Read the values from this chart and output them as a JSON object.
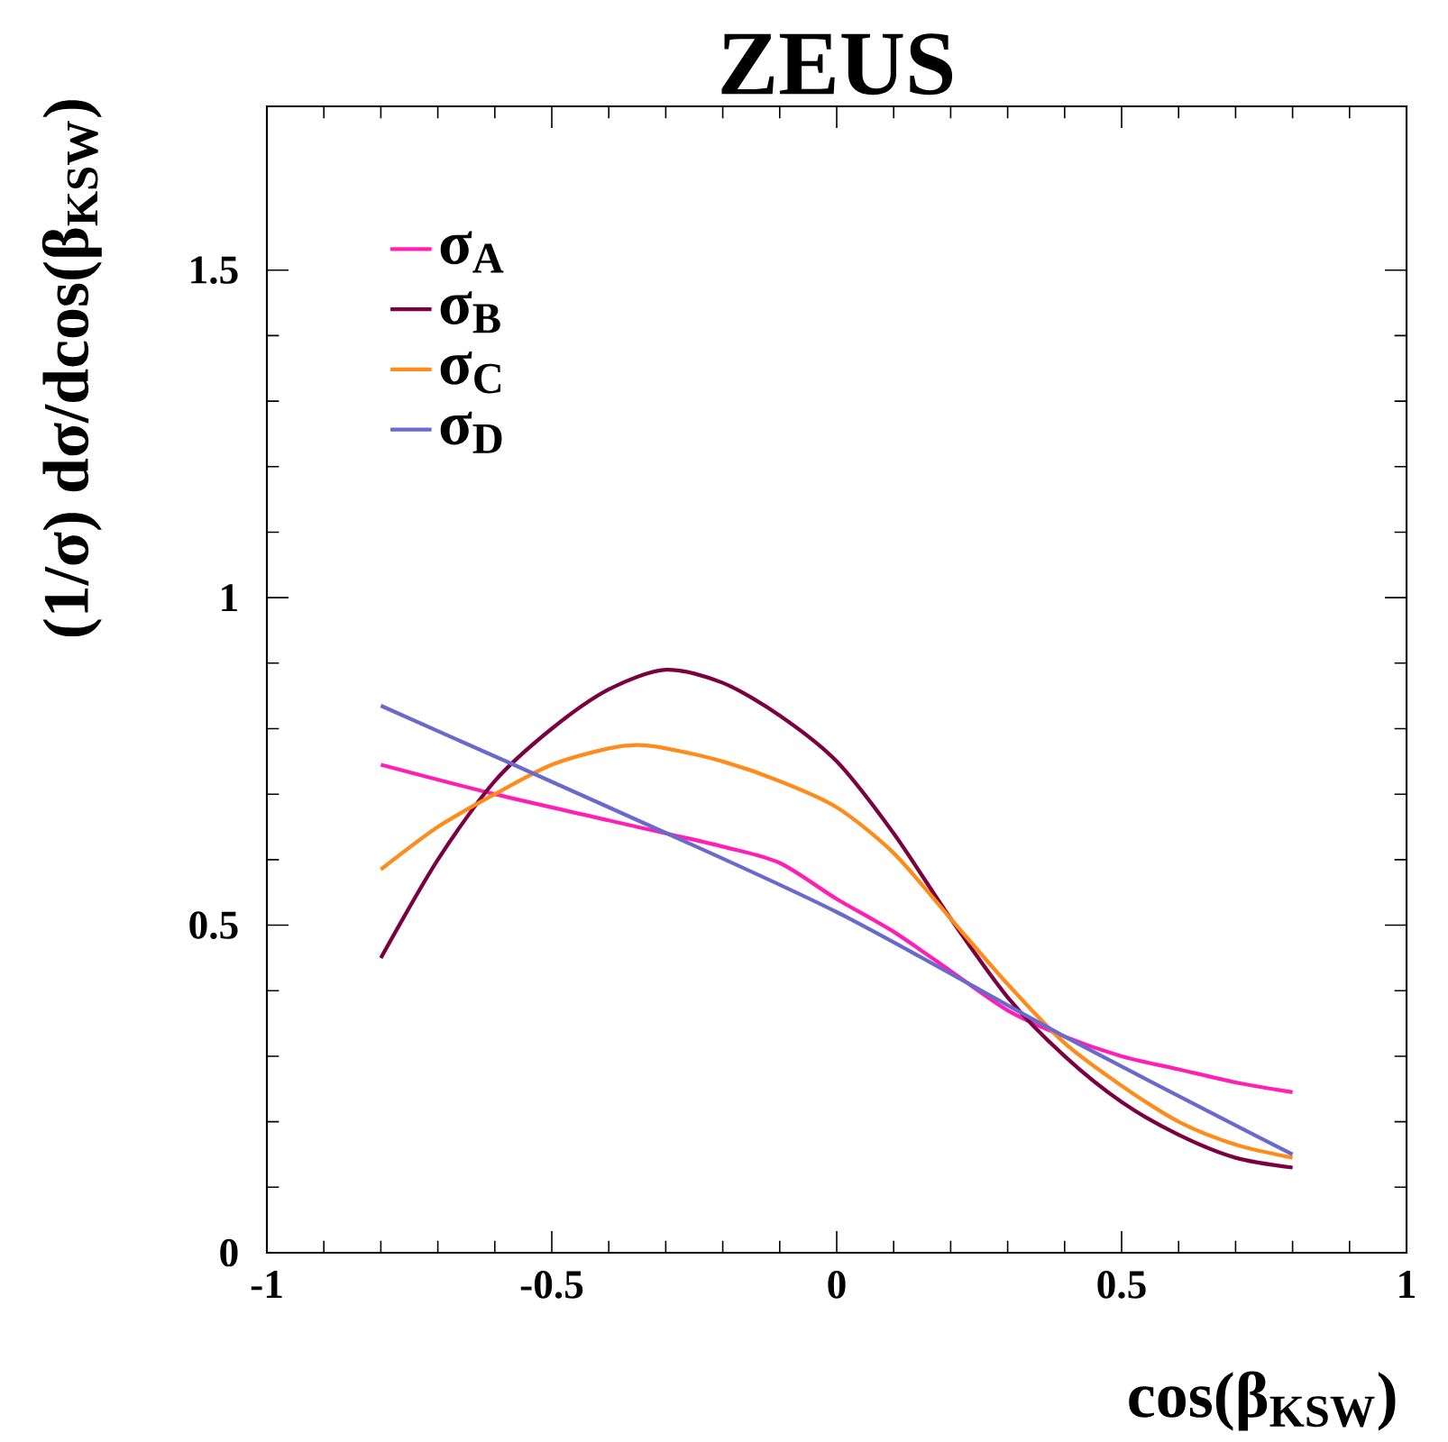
{
  "chart_data": {
    "type": "line",
    "title": "ZEUS",
    "xlabel": "cos(β$_{KSW}$)",
    "ylabel": "(1/σ) dσ/dcos(β$_{KSW}$)",
    "xlim": [
      -1,
      1
    ],
    "ylim": [
      0,
      1.75
    ],
    "xticks": [
      -1,
      -0.5,
      0,
      0.5,
      1
    ],
    "yticks": [
      0,
      0.5,
      1,
      1.5
    ],
    "legend": "top left",
    "line_style": "solid",
    "series": [
      {
        "name": "σ$_{A}$",
        "color": "#ff1fb4",
        "x": [
          -0.8,
          -0.6,
          -0.4,
          -0.2,
          -0.1,
          0,
          0.1,
          0.2,
          0.3,
          0.4,
          0.5,
          0.6,
          0.7,
          0.8
        ],
        "values": [
          0.745,
          0.7,
          0.66,
          0.62,
          0.595,
          0.54,
          0.49,
          0.43,
          0.37,
          0.33,
          0.3,
          0.28,
          0.26,
          0.245
        ]
      },
      {
        "name": "σ$_{B}$",
        "color": "#7a0040",
        "x": [
          -0.8,
          -0.7,
          -0.6,
          -0.5,
          -0.4,
          -0.3,
          -0.2,
          -0.1,
          0,
          0.1,
          0.2,
          0.3,
          0.4,
          0.5,
          0.6,
          0.7,
          0.8
        ],
        "values": [
          0.45,
          0.6,
          0.72,
          0.8,
          0.86,
          0.89,
          0.87,
          0.82,
          0.75,
          0.64,
          0.51,
          0.39,
          0.3,
          0.23,
          0.18,
          0.145,
          0.13
        ]
      },
      {
        "name": "σ$_{C}$",
        "color": "#ff8c1a",
        "x": [
          -0.8,
          -0.7,
          -0.6,
          -0.5,
          -0.4,
          -0.35,
          -0.3,
          -0.2,
          -0.1,
          0,
          0.1,
          0.2,
          0.3,
          0.4,
          0.5,
          0.6,
          0.7,
          0.8
        ],
        "values": [
          0.585,
          0.65,
          0.7,
          0.745,
          0.77,
          0.775,
          0.77,
          0.75,
          0.72,
          0.68,
          0.61,
          0.51,
          0.41,
          0.32,
          0.255,
          0.2,
          0.165,
          0.145
        ]
      },
      {
        "name": "σ$_{D}$",
        "color": "#6a6acc",
        "x": [
          -0.8,
          -0.4,
          0,
          0.4,
          0.8
        ],
        "values": [
          0.835,
          0.68,
          0.52,
          0.33,
          0.15
        ]
      }
    ]
  }
}
